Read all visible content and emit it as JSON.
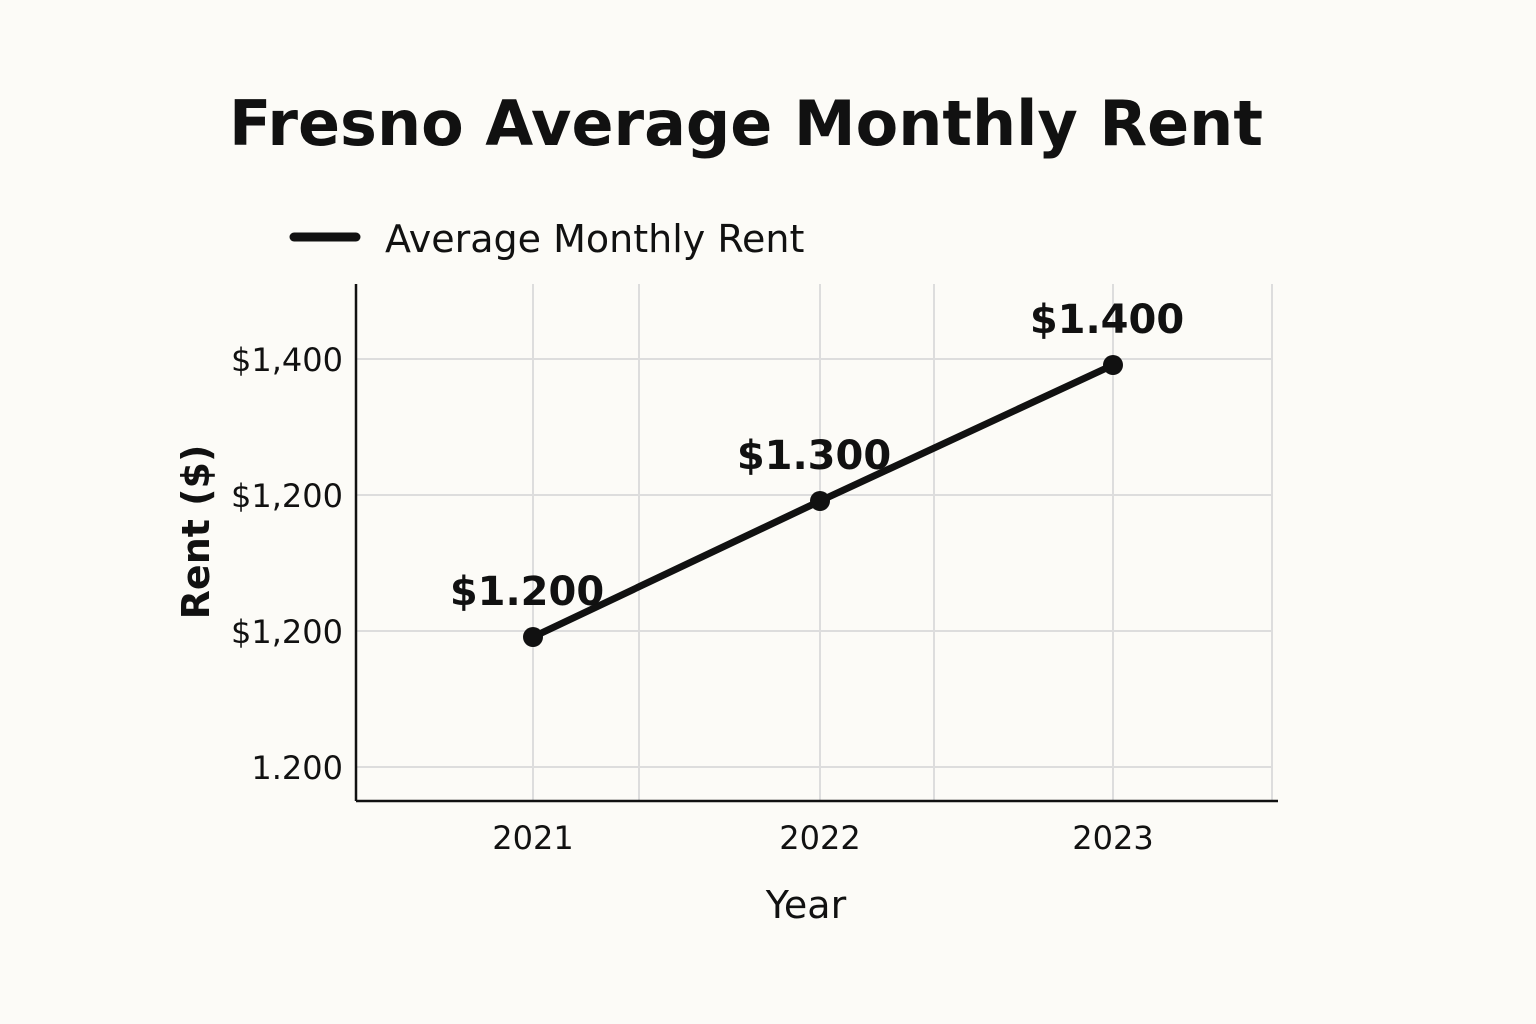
{
  "chart_data": {
    "type": "line",
    "title": "Fresno Average Monthly Rent",
    "xlabel": "Year",
    "ylabel": "Rent ($)",
    "categories": [
      "2021",
      "2022",
      "2023"
    ],
    "y_tick_labels": [
      "1.200",
      "$1,200",
      "$1,200",
      "$1,400"
    ],
    "series": [
      {
        "name": "Average Monthly Rent",
        "values": [
          1200,
          1300,
          1400
        ],
        "value_labels": [
          "$1.200",
          "$1.300",
          "$1.400"
        ],
        "color": "#111111"
      }
    ],
    "grid": true,
    "legend_position": "top-left"
  }
}
